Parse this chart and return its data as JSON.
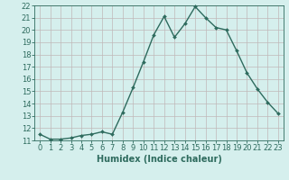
{
  "x": [
    0,
    1,
    2,
    3,
    4,
    5,
    6,
    7,
    8,
    9,
    10,
    11,
    12,
    13,
    14,
    15,
    16,
    17,
    18,
    19,
    20,
    21,
    22,
    23
  ],
  "y": [
    11.5,
    11.1,
    11.1,
    11.2,
    11.4,
    11.5,
    11.7,
    11.5,
    13.3,
    15.3,
    17.4,
    19.6,
    21.1,
    19.4,
    20.5,
    21.9,
    21.0,
    20.2,
    20.0,
    18.3,
    16.5,
    15.2,
    14.1,
    13.2
  ],
  "line_color": "#2e6b5e",
  "marker": "D",
  "marker_size": 2,
  "bg_color": "#d5efed",
  "grid_color": "#c0b8b8",
  "xlabel": "Humidex (Indice chaleur)",
  "xlim": [
    -0.5,
    23.5
  ],
  "ylim": [
    11,
    22
  ],
  "yticks": [
    11,
    12,
    13,
    14,
    15,
    16,
    17,
    18,
    19,
    20,
    21,
    22
  ],
  "xticks": [
    0,
    1,
    2,
    3,
    4,
    5,
    6,
    7,
    8,
    9,
    10,
    11,
    12,
    13,
    14,
    15,
    16,
    17,
    18,
    19,
    20,
    21,
    22,
    23
  ],
  "xlabel_fontsize": 7,
  "tick_fontsize": 6,
  "line_width": 1.0
}
